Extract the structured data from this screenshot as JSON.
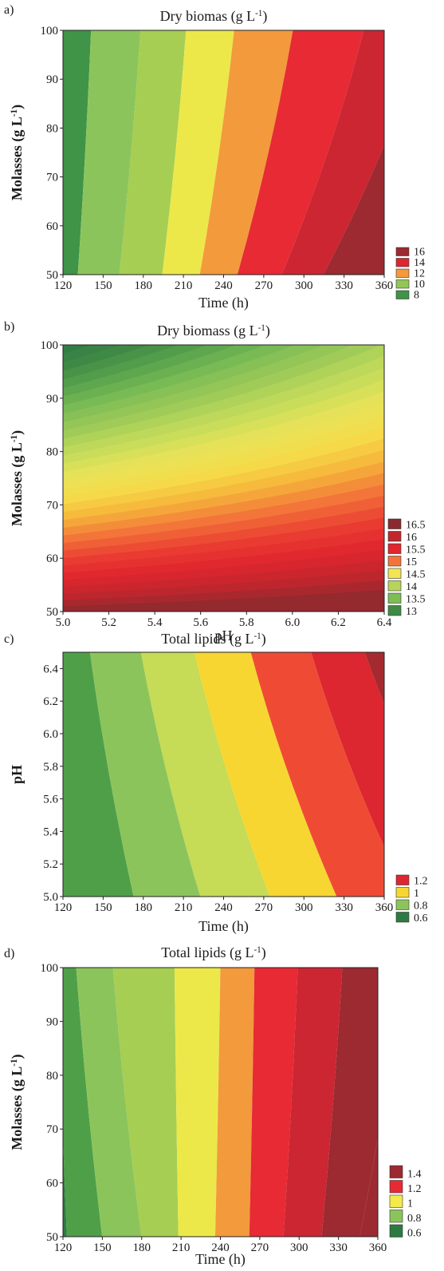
{
  "figure": {
    "panels": [
      {
        "letter": "a)",
        "title": "Dry biomas (g L",
        "title_sup": "-1",
        "title_end": ")",
        "xlabel": "Time (h)",
        "ylabel": "Molasses (g L",
        "ylabel_sup": "-1",
        "ylabel_end": ")"
      },
      {
        "letter": "b)",
        "title": "Dry biomass (g L",
        "title_sup": "-1",
        "title_end": ")",
        "xlabel": "pH",
        "ylabel": "Molasses (g L",
        "ylabel_sup": "-1",
        "ylabel_end": ")"
      },
      {
        "letter": "c)",
        "title": "Total lipids (g L",
        "title_sup": "-1",
        "title_end": ")",
        "xlabel": "Time (h)",
        "ylabel": "pH",
        "ylabel_sup": "",
        "ylabel_end": ""
      },
      {
        "letter": "d)",
        "title": "Total lipids (g L",
        "title_sup": "-1",
        "title_end": ")",
        "xlabel": "Time (h)",
        "ylabel": "Molasses (g L",
        "ylabel_sup": "-1",
        "ylabel_end": ")"
      }
    ]
  },
  "chart_data": [
    {
      "type": "heatmap",
      "x_ticks": [
        "120",
        "150",
        "180",
        "210",
        "240",
        "270",
        "300",
        "330",
        "360"
      ],
      "y_ticks": [
        "50",
        "60",
        "70",
        "80",
        "90",
        "100"
      ],
      "xlim": [
        120,
        360
      ],
      "ylim": [
        50,
        100
      ],
      "legend_entries": [
        "16",
        "14",
        "12",
        "10",
        "8"
      ],
      "legend_colors": [
        "#9c2a30",
        "#dc2630",
        "#f39a3c",
        "#93c656",
        "#3f9447"
      ],
      "band_colors": [
        "#3f9447",
        "#8cc45c",
        "#a6ce52",
        "#ece84a",
        "#f39a3c",
        "#e72a34",
        "#cc2632",
        "#9c2a30"
      ],
      "contour_lines": [
        {
          "bottom_x": 131,
          "top_x": 141
        },
        {
          "bottom_x": 162,
          "top_x": 178
        },
        {
          "bottom_x": 194,
          "top_x": 212
        },
        {
          "bottom_x": 222,
          "top_x": 248
        },
        {
          "bottom_x": 250,
          "top_x": 292
        },
        {
          "bottom_x": 283,
          "top_x": 345
        },
        {
          "bottom_x": 314,
          "top_x": 392
        }
      ]
    },
    {
      "type": "heatmap",
      "x_ticks": [
        "5.0",
        "5.2",
        "5.4",
        "5.6",
        "5.8",
        "6.0",
        "6.2",
        "6.4"
      ],
      "y_ticks": [
        "50",
        "60",
        "70",
        "80",
        "90",
        "100"
      ],
      "xlim": [
        5.0,
        6.5
      ],
      "ylim": [
        50,
        100
      ],
      "legend_entries": [
        "16.5",
        "16",
        "15.5",
        "15",
        "14.5",
        "14",
        "13.5",
        "13"
      ],
      "legend_colors": [
        "#8a2a2e",
        "#c0262e",
        "#e0262e",
        "#f3743a",
        "#f2e552",
        "#b6d55a",
        "#7dbd55",
        "#3f8a45"
      ],
      "value_range": [
        12.5,
        16.8
      ]
    },
    {
      "type": "heatmap",
      "x_ticks": [
        "120",
        "150",
        "180",
        "210",
        "240",
        "270",
        "300",
        "330",
        "360"
      ],
      "y_ticks": [
        "5.0",
        "5.2",
        "5.4",
        "5.6",
        "5.8",
        "6.0",
        "6.2",
        "6.4"
      ],
      "xlim": [
        120,
        360
      ],
      "ylim": [
        5.0,
        6.5
      ],
      "legend_entries": [
        "1.2",
        "1",
        "0.8",
        "0.6"
      ],
      "legend_colors": [
        "#dc2630",
        "#f7d631",
        "#8cc45c",
        "#2d7a43"
      ],
      "band_colors": [
        "#4f9f48",
        "#8cc45c",
        "#c6db56",
        "#f7d631",
        "#ef4b34",
        "#dc2630",
        "#a52a30",
        "#8a2a2e"
      ],
      "contour_lines": [
        {
          "bottom_x": 173,
          "top_x": 140
        },
        {
          "bottom_x": 223,
          "top_x": 178
        },
        {
          "bottom_x": 275,
          "top_x": 218
        },
        {
          "bottom_x": 325,
          "top_x": 260
        },
        {
          "bottom_x": 378,
          "top_x": 305
        },
        {
          "bottom_x": 430,
          "top_x": 345
        },
        {
          "bottom_x": 480,
          "top_x": 390
        }
      ]
    },
    {
      "type": "heatmap",
      "x_ticks": [
        "120",
        "150",
        "180",
        "210",
        "240",
        "270",
        "300",
        "330",
        "360"
      ],
      "y_ticks": [
        "50",
        "60",
        "70",
        "80",
        "90",
        "100"
      ],
      "xlim": [
        120,
        360
      ],
      "ylim": [
        50,
        100
      ],
      "legend_entries": [
        "1.4",
        "1.2",
        "1",
        "0.8",
        "0.6"
      ],
      "legend_colors": [
        "#9c2a30",
        "#e72a34",
        "#f3ea4c",
        "#8cc45c",
        "#2d7a43"
      ],
      "band_colors": [
        "#2d7a43",
        "#4f9f48",
        "#8cc45c",
        "#a6ce52",
        "#ece84a",
        "#f39a3c",
        "#e72a34",
        "#cc2632",
        "#9c2a30"
      ],
      "contour_lines": [
        {
          "bottom_x": 123,
          "top_x": 116
        },
        {
          "bottom_x": 150,
          "top_x": 130
        },
        {
          "bottom_x": 180,
          "top_x": 158
        },
        {
          "bottom_x": 208,
          "top_x": 205
        },
        {
          "bottom_x": 236,
          "top_x": 240
        },
        {
          "bottom_x": 262,
          "top_x": 266
        },
        {
          "bottom_x": 288,
          "top_x": 299
        },
        {
          "bottom_x": 317,
          "top_x": 333
        },
        {
          "bottom_x": 346,
          "top_x": 379
        }
      ]
    }
  ]
}
